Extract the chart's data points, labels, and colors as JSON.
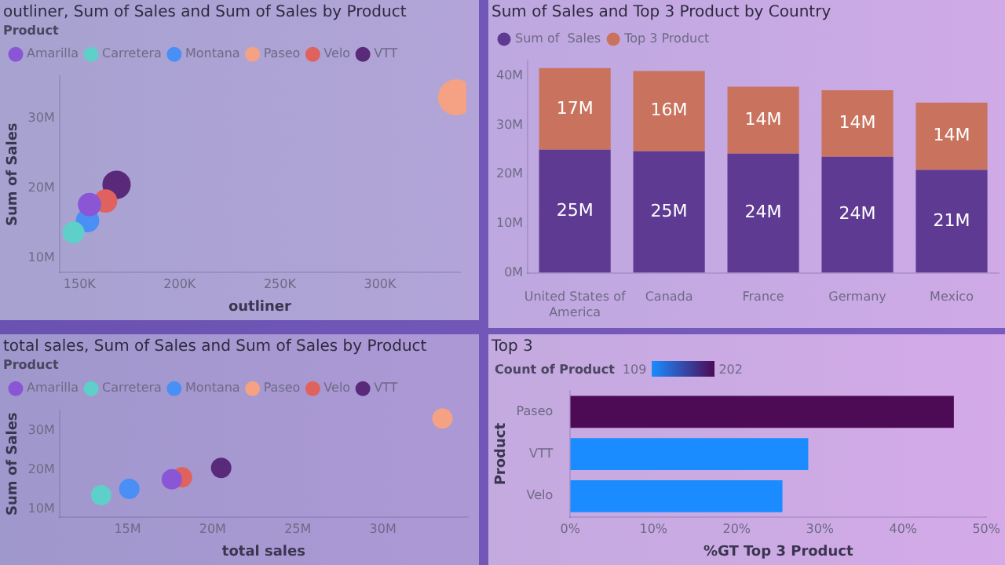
{
  "chart_data": [
    {
      "type": "bubble",
      "title": "outliner, Sum of Sales and Sum of Sales by Product",
      "xlabel": "outliner",
      "ylabel": "Sum of Sales",
      "legend_title": "Product",
      "legend": "top left",
      "grid": false,
      "marker": "circle",
      "xlim": [
        140000,
        340000
      ],
      "xticks": [
        {
          "value": 150000,
          "label": "150K"
        },
        {
          "value": 200000,
          "label": "200K"
        },
        {
          "value": 250000,
          "label": "250K"
        },
        {
          "value": 300000,
          "label": "300K"
        }
      ],
      "ylim": [
        8000000,
        36000000
      ],
      "yticks": [
        {
          "value": 10000000,
          "label": "10M"
        },
        {
          "value": 20000000,
          "label": "20M"
        },
        {
          "value": 30000000,
          "label": "30M"
        }
      ],
      "series": [
        {
          "name": "Amarilla",
          "color": "#8a56d6",
          "x": [
            155000
          ],
          "values": [
            17700000
          ],
          "sizes": [
            0.4
          ]
        },
        {
          "name": "Carretera",
          "color": "#5fcfc9",
          "x": [
            147000
          ],
          "values": [
            13700000
          ],
          "sizes": [
            0.35
          ]
        },
        {
          "name": "Montana",
          "color": "#4a8ff5",
          "x": [
            154000
          ],
          "values": [
            15400000
          ],
          "sizes": [
            0.4
          ]
        },
        {
          "name": "Paseo",
          "color": "#f4a283",
          "x": [
            338000
          ],
          "values": [
            33000000
          ],
          "sizes": [
            1
          ]
        },
        {
          "name": "Velo",
          "color": "#e0625e",
          "x": [
            163000
          ],
          "values": [
            18200000
          ],
          "sizes": [
            0.4
          ]
        },
        {
          "name": "VTT",
          "color": "#5a2a7a",
          "x": [
            168500
          ],
          "values": [
            20500000
          ],
          "sizes": [
            0.6
          ]
        }
      ]
    },
    {
      "type": "bar",
      "stacked": true,
      "title": "Sum of Sales and Top 3 Product by Country",
      "legend": "top left",
      "grid": false,
      "categories": [
        "United States of America",
        "Canada",
        "France",
        "Germany",
        "Mexico"
      ],
      "ylim": [
        0,
        43000000
      ],
      "yticks": [
        {
          "value": 0,
          "label": "0M"
        },
        {
          "value": 10000000,
          "label": "10M"
        },
        {
          "value": 20000000,
          "label": "20M"
        },
        {
          "value": 30000000,
          "label": "30M"
        },
        {
          "value": 40000000,
          "label": "40M"
        }
      ],
      "series": [
        {
          "name": "Sum of  Sales",
          "color": "#5e3a93",
          "values": [
            25000000,
            24700000,
            24200000,
            23600000,
            20900000
          ],
          "value_labels": [
            "25M",
            "25M",
            "24M",
            "24M",
            "21M"
          ]
        },
        {
          "name": "Top 3 Product",
          "color": "#c9735e",
          "values": [
            16600000,
            16300000,
            13600000,
            13500000,
            13700000
          ],
          "value_labels": [
            "17M",
            "16M",
            "14M",
            "14M",
            "14M"
          ]
        }
      ]
    },
    {
      "type": "scatter",
      "title": "total sales, Sum of Sales and Sum of Sales by Product",
      "xlabel": "total sales",
      "ylabel": "Sum of Sales",
      "legend_title": "Product",
      "legend": "top left",
      "grid": false,
      "marker": "circle",
      "xlim": [
        11000000,
        35000000
      ],
      "xticks": [
        {
          "value": 15000000,
          "label": "15M"
        },
        {
          "value": 20000000,
          "label": "20M"
        },
        {
          "value": 25000000,
          "label": "25M"
        },
        {
          "value": 30000000,
          "label": "30M"
        }
      ],
      "ylim": [
        8000000,
        35000000
      ],
      "yticks": [
        {
          "value": 10000000,
          "label": "10M"
        },
        {
          "value": 20000000,
          "label": "20M"
        },
        {
          "value": 30000000,
          "label": "30M"
        }
      ],
      "series": [
        {
          "name": "Amarilla",
          "color": "#8a56d6",
          "x": [
            17600000
          ],
          "values": [
            17600000
          ]
        },
        {
          "name": "Carretera",
          "color": "#5fcfc9",
          "x": [
            13450000
          ],
          "values": [
            13600000
          ]
        },
        {
          "name": "Montana",
          "color": "#4a8ff5",
          "x": [
            15100000
          ],
          "values": [
            15200000
          ]
        },
        {
          "name": "Paseo",
          "color": "#f4a283",
          "x": [
            33500000
          ],
          "values": [
            33000000
          ]
        },
        {
          "name": "Velo",
          "color": "#e0625e",
          "x": [
            18200000
          ],
          "values": [
            18100000
          ]
        },
        {
          "name": "VTT",
          "color": "#5a2a7a",
          "x": [
            20500000
          ],
          "values": [
            20500000
          ]
        }
      ]
    },
    {
      "type": "bar",
      "orientation": "horizontal",
      "title": "Top 3",
      "xlabel": "%GT Top 3 Product",
      "ylabel": "Product",
      "clabel": "Count of Product",
      "annotations": [
        "109",
        "202"
      ],
      "grid": false,
      "categories": [
        "Paseo",
        "VTT",
        "Velo"
      ],
      "values": [
        46.1,
        28.6,
        25.5
      ],
      "colors": [
        "#4d0a55",
        "#1a8cff",
        "#1a8cff"
      ],
      "xlim": [
        0,
        50
      ],
      "xticks": [
        {
          "value": 0,
          "label": "0%"
        },
        {
          "value": 10,
          "label": "10%"
        },
        {
          "value": 20,
          "label": "20%"
        },
        {
          "value": 30,
          "label": "30%"
        },
        {
          "value": 40,
          "label": "40%"
        },
        {
          "value": 50,
          "label": "50%"
        }
      ]
    }
  ]
}
